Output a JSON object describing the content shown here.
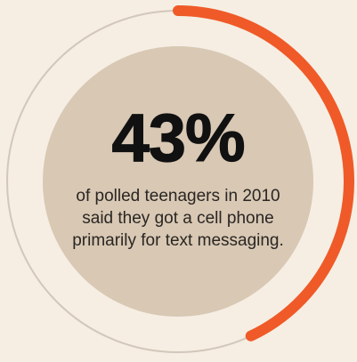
{
  "chart_data": {
    "type": "pie",
    "style": "donut-progress-ring",
    "value_percent": 43,
    "value_label": "43%",
    "caption": "of polled teenagers in 2010 said they got a cell phone primarily for text messaging.",
    "colors": {
      "background": "#f6eee3",
      "inner_disc": "#d8c8b4",
      "track": "#d2c7ba",
      "progress": "#ef5a28",
      "value_text": "#111111",
      "caption_text": "#2a2622"
    }
  }
}
